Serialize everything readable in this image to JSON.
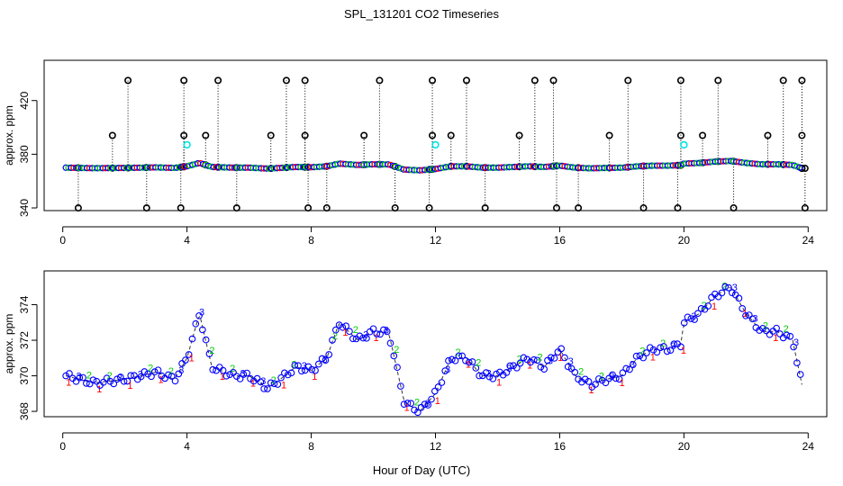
{
  "chart_data": {
    "title": "SPL_131201  CO2 Timeseries",
    "xlabel": "Hour of Day (UTC)",
    "colors": {
      "s1": "#ff0000",
      "s2": "#00cc00",
      "s3": "#0000ff",
      "raw": "#000000",
      "flag": "#00e5e5",
      "dash": "#333333"
    },
    "panels": [
      {
        "type": "scatter",
        "ylabel": "approx. ppm",
        "xlim": [
          -0.6,
          24.6
        ],
        "ylim": [
          338.0,
          450.0
        ],
        "xticks": [
          0,
          4,
          8,
          12,
          16,
          20,
          24
        ],
        "yticks": [
          340,
          380,
          420
        ],
        "y_clip_top": 435.0,
        "y_clip_bottom": 340.0,
        "baseline": [
          [
            0.1,
            370.0
          ],
          [
            1.0,
            369.6
          ],
          [
            2.0,
            369.8
          ],
          [
            3.0,
            370.2
          ],
          [
            3.6,
            369.8
          ],
          [
            4.0,
            371.0
          ],
          [
            4.4,
            373.5
          ],
          [
            4.8,
            370.5
          ],
          [
            5.5,
            370.0
          ],
          [
            6.0,
            370.0
          ],
          [
            6.6,
            369.3
          ],
          [
            7.0,
            369.8
          ],
          [
            7.5,
            370.5
          ],
          [
            8.0,
            370.3
          ],
          [
            8.5,
            371.0
          ],
          [
            8.9,
            373.0
          ],
          [
            9.5,
            372.0
          ],
          [
            10.0,
            372.5
          ],
          [
            10.5,
            372.4
          ],
          [
            11.0,
            368.5
          ],
          [
            11.5,
            368.0
          ],
          [
            12.0,
            369.0
          ],
          [
            12.5,
            371.0
          ],
          [
            13.0,
            371.0
          ],
          [
            13.5,
            370.0
          ],
          [
            14.0,
            370.0
          ],
          [
            14.5,
            370.5
          ],
          [
            15.0,
            371.0
          ],
          [
            15.5,
            370.5
          ],
          [
            16.0,
            371.5
          ],
          [
            16.5,
            370.0
          ],
          [
            17.0,
            369.5
          ],
          [
            17.5,
            369.8
          ],
          [
            18.0,
            370.0
          ],
          [
            18.5,
            371.0
          ],
          [
            19.0,
            371.5
          ],
          [
            19.5,
            371.5
          ],
          [
            19.9,
            371.8
          ],
          [
            20.0,
            373.0
          ],
          [
            20.5,
            373.5
          ],
          [
            21.0,
            374.5
          ],
          [
            21.5,
            375.0
          ],
          [
            22.0,
            373.5
          ],
          [
            22.5,
            372.5
          ],
          [
            23.0,
            372.5
          ],
          [
            23.5,
            372.0
          ],
          [
            23.8,
            369.5
          ]
        ],
        "spikes_high": [
          2.1,
          3.9,
          5.0,
          7.2,
          7.8,
          10.2,
          11.9,
          13.0,
          15.2,
          15.8,
          18.2,
          19.9,
          21.1,
          23.2,
          23.8
        ],
        "spikes_mid": [
          [
            1.6,
            394
          ],
          [
            3.9,
            394
          ],
          [
            4.6,
            394
          ],
          [
            6.7,
            394
          ],
          [
            7.8,
            394
          ],
          [
            9.7,
            394
          ],
          [
            11.9,
            394
          ],
          [
            12.5,
            394
          ],
          [
            14.7,
            394
          ],
          [
            17.6,
            394
          ],
          [
            19.9,
            394
          ],
          [
            20.6,
            394
          ],
          [
            22.7,
            394
          ],
          [
            23.8,
            394
          ]
        ],
        "spikes_low": [
          0.5,
          2.7,
          3.8,
          5.6,
          7.9,
          8.5,
          10.7,
          11.8,
          13.6,
          15.9,
          16.6,
          18.7,
          19.8,
          21.6,
          23.9
        ],
        "flagged": [
          [
            4.0,
            387
          ],
          [
            12.0,
            387
          ],
          [
            20.0,
            387
          ]
        ]
      },
      {
        "type": "scatter",
        "ylabel": "approx. ppm",
        "xlim": [
          -0.6,
          24.6
        ],
        "ylim": [
          367.7,
          375.9
        ],
        "xticks": [
          0,
          4,
          8,
          12,
          16,
          20,
          24
        ],
        "yticks": [
          368,
          370,
          372,
          374
        ],
        "series": [
          {
            "name": "1",
            "label": "1",
            "color": "#ff0000"
          },
          {
            "name": "2",
            "label": "2",
            "color": "#00cc00"
          },
          {
            "name": "3",
            "label": "3",
            "color": "#0000ff"
          }
        ],
        "series_source": "baseline of panel 1"
      }
    ]
  }
}
